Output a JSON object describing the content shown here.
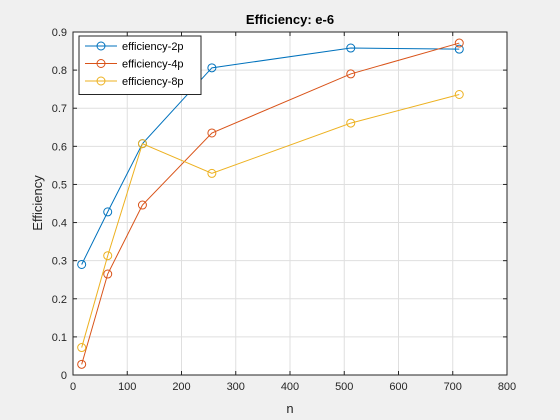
{
  "chart_data": {
    "type": "line",
    "title": "Efficiency: e-6",
    "xlabel": "n",
    "ylabel": "Efficiency",
    "xlim": [
      0,
      800
    ],
    "ylim": [
      0,
      0.9
    ],
    "xticks": [
      0,
      100,
      200,
      300,
      400,
      500,
      600,
      700,
      800
    ],
    "yticks": [
      0,
      0.1,
      0.2,
      0.3,
      0.4,
      0.5,
      0.6,
      0.7,
      0.8,
      0.9
    ],
    "grid": true,
    "legend_position": "top-left",
    "marker": "circle",
    "series": [
      {
        "name": "efficiency-2p",
        "color": "#0072BD",
        "x": [
          16,
          64,
          128,
          256,
          512,
          712
        ],
        "y": [
          0.29,
          0.428,
          0.607,
          0.806,
          0.858,
          0.855
        ]
      },
      {
        "name": "efficiency-4p",
        "color": "#D95319",
        "x": [
          16,
          64,
          128,
          256,
          512,
          712
        ],
        "y": [
          0.028,
          0.265,
          0.446,
          0.635,
          0.79,
          0.871
        ]
      },
      {
        "name": "efficiency-8p",
        "color": "#EDB120",
        "x": [
          16,
          64,
          128,
          256,
          512,
          712
        ],
        "y": [
          0.072,
          0.313,
          0.607,
          0.529,
          0.661,
          0.736
        ]
      }
    ]
  }
}
